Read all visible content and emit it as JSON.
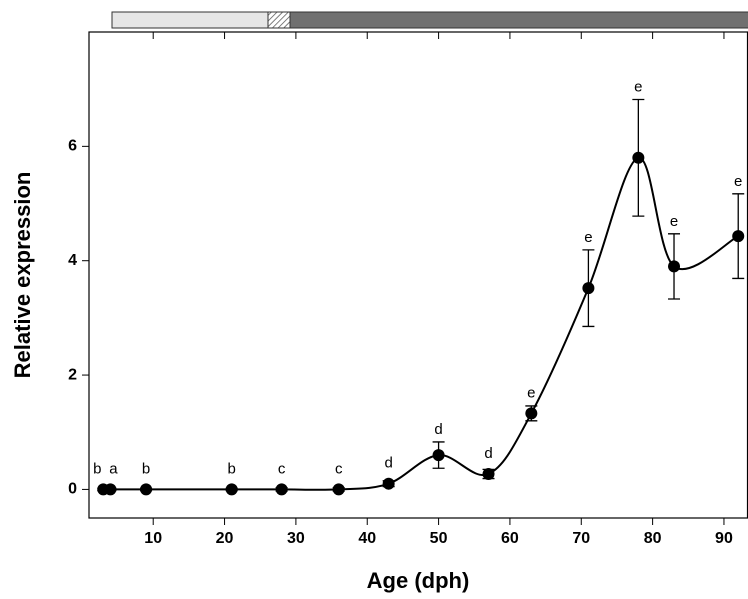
{
  "chart_data": {
    "type": "line",
    "xlabel": "Age (dph)",
    "ylabel": "Relative expression",
    "x": [
      3,
      4,
      9,
      21,
      28,
      36,
      43,
      50,
      57,
      63,
      71,
      78,
      83,
      92
    ],
    "series": [
      {
        "color": "#000000",
        "values": [
          0,
          0,
          0,
          0,
          0,
          0,
          0.1,
          0.6,
          0.27,
          1.33,
          3.52,
          5.8,
          3.9,
          4.43
        ],
        "errors": [
          0.02,
          0.02,
          0.02,
          0.02,
          0.03,
          0.03,
          0.05,
          0.23,
          0.08,
          0.13,
          0.67,
          1.02,
          0.57,
          0.74
        ],
        "annotations": [
          "b",
          "a",
          "b",
          "b",
          "c",
          "c",
          "d",
          "d",
          "d",
          "e",
          "e",
          "e",
          "e",
          "e"
        ]
      }
    ],
    "xlim": [
      1,
      93.3
    ],
    "xticks": [
      10,
      20,
      30,
      40,
      50,
      60,
      70,
      80,
      90
    ],
    "ylim": [
      -0.5,
      8
    ],
    "yticks": [
      0,
      2,
      4,
      6
    ]
  }
}
